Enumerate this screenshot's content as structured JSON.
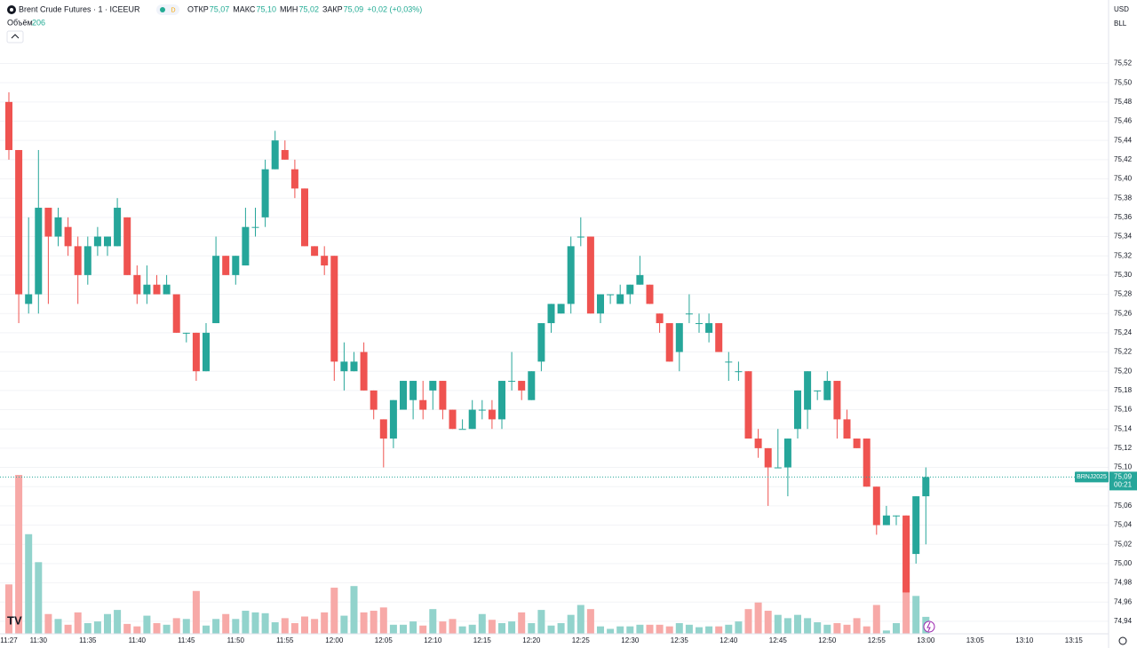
{
  "header": {
    "title": "Brent Crude Futures · 1 · ICEEUR",
    "badge": "D",
    "stats": [
      {
        "name": "ОТКР",
        "value": "75,07"
      },
      {
        "name": "МАКС",
        "value": "75,10"
      },
      {
        "name": "МИН",
        "value": "75,02"
      },
      {
        "name": "ЗАКР",
        "value": "75,09"
      }
    ],
    "change": "+0,02 (+0,03%)",
    "volume_name": "Объём",
    "volume_value": "206",
    "currency": "USD",
    "unit": "BLL"
  },
  "chart_data": {
    "type": "candlestick",
    "categories": [
      "11:27",
      null,
      null,
      "11:30",
      null,
      null,
      null,
      null,
      "11:35",
      null,
      null,
      null,
      null,
      "11:40",
      null,
      null,
      null,
      null,
      "11:45",
      null,
      null,
      null,
      null,
      "11:50",
      null,
      null,
      null,
      null,
      "11:55",
      null,
      null,
      null,
      null,
      "12:00",
      null,
      null,
      null,
      null,
      "12:05",
      null,
      null,
      null,
      null,
      "12:10",
      null,
      null,
      null,
      null,
      "12:15",
      null,
      null,
      null,
      null,
      "12:20",
      null,
      null,
      null,
      null,
      "12:25",
      null,
      null,
      null,
      null,
      "12:30",
      null,
      null,
      null,
      null,
      "12:35",
      null,
      null,
      null,
      null,
      "12:40",
      null,
      null,
      null,
      null,
      "12:45",
      null,
      null,
      null,
      null,
      "12:50",
      null,
      null,
      null,
      null,
      "12:55",
      null,
      null,
      null,
      null,
      "13:00",
      null,
      null,
      null,
      null,
      "13:05",
      null,
      null,
      null,
      null,
      "13:10",
      null,
      null,
      null,
      null,
      "13:15"
    ],
    "open": [
      75.48,
      75.43,
      75.27,
      75.28,
      75.37,
      75.34,
      75.35,
      75.33,
      75.3,
      75.33,
      75.33,
      75.33,
      75.36,
      75.3,
      75.28,
      75.29,
      75.28,
      75.28,
      75.24,
      75.24,
      75.2,
      75.25,
      75.32,
      75.3,
      75.31,
      75.35,
      75.36,
      75.41,
      75.43,
      75.41,
      75.39,
      75.33,
      75.32,
      75.32,
      75.2,
      75.2,
      75.22,
      75.18,
      75.15,
      75.13,
      75.16,
      75.17,
      75.17,
      75.18,
      75.19,
      75.16,
      75.14,
      75.14,
      75.16,
      75.16,
      75.15,
      75.19,
      75.19,
      75.17,
      75.21,
      75.25,
      75.26,
      75.27,
      75.34,
      75.34,
      75.26,
      75.28,
      75.27,
      75.28,
      75.29,
      75.29,
      75.26,
      75.25,
      75.22,
      75.26,
      75.25,
      75.24,
      75.25,
      75.21,
      75.2,
      75.2,
      75.13,
      75.12,
      75.1,
      75.1,
      75.14,
      75.16,
      75.18,
      75.17,
      75.19,
      75.15,
      75.13,
      75.13,
      75.08,
      75.04,
      75.05,
      75.05,
      75.01,
      75.07,
      null,
      null,
      null,
      null,
      null,
      null,
      null,
      null,
      null,
      null,
      null,
      null,
      null,
      null,
      null
    ],
    "high": [
      75.49,
      75.43,
      75.36,
      75.43,
      75.37,
      75.37,
      75.36,
      75.34,
      75.34,
      75.35,
      75.34,
      75.38,
      75.36,
      75.31,
      75.31,
      75.3,
      75.3,
      75.28,
      75.24,
      75.24,
      75.25,
      75.34,
      75.32,
      75.32,
      75.37,
      75.37,
      75.42,
      75.45,
      75.44,
      75.42,
      75.39,
      75.33,
      75.33,
      75.32,
      75.23,
      75.22,
      75.23,
      75.18,
      75.15,
      75.17,
      75.19,
      75.19,
      75.19,
      75.19,
      75.19,
      75.16,
      75.15,
      75.17,
      75.17,
      75.17,
      75.19,
      75.22,
      75.19,
      75.2,
      75.25,
      75.27,
      75.27,
      75.34,
      75.36,
      75.34,
      75.28,
      75.28,
      75.29,
      75.29,
      75.32,
      75.29,
      75.26,
      75.25,
      75.25,
      75.28,
      75.26,
      75.26,
      75.25,
      75.22,
      75.21,
      75.2,
      75.14,
      75.12,
      75.14,
      75.13,
      75.18,
      75.2,
      75.18,
      75.2,
      75.19,
      75.16,
      75.13,
      75.13,
      75.08,
      75.06,
      75.05,
      75.05,
      75.07,
      75.1,
      null,
      null,
      null,
      null,
      null,
      null,
      null,
      null,
      null,
      null,
      null,
      null,
      null,
      null,
      null
    ],
    "low": [
      75.42,
      75.25,
      75.26,
      75.26,
      75.27,
      75.33,
      75.32,
      75.27,
      75.29,
      75.32,
      75.32,
      75.33,
      75.3,
      75.27,
      75.27,
      75.28,
      75.28,
      75.24,
      75.23,
      75.19,
      75.2,
      75.25,
      75.3,
      75.29,
      75.31,
      75.34,
      75.35,
      75.41,
      75.42,
      75.38,
      75.33,
      75.32,
      75.3,
      75.19,
      75.18,
      75.2,
      75.18,
      75.15,
      75.1,
      75.12,
      75.16,
      75.15,
      75.15,
      75.16,
      75.15,
      75.14,
      75.14,
      75.14,
      75.15,
      75.14,
      75.14,
      75.18,
      75.17,
      75.17,
      75.2,
      75.24,
      75.26,
      75.26,
      75.33,
      75.26,
      75.25,
      75.27,
      75.27,
      75.27,
      75.29,
      75.27,
      75.24,
      75.21,
      75.2,
      75.25,
      75.24,
      75.23,
      75.22,
      75.19,
      75.19,
      75.13,
      75.11,
      75.06,
      75.1,
      75.07,
      75.13,
      75.14,
      75.17,
      75.17,
      75.13,
      75.13,
      75.12,
      75.08,
      75.03,
      75.04,
      75.04,
      74.97,
      75.0,
      75.02,
      null,
      null,
      null,
      null,
      null,
      null,
      null,
      null,
      null,
      null,
      null,
      null,
      null,
      null,
      null
    ],
    "close": [
      75.43,
      75.28,
      75.28,
      75.37,
      75.34,
      75.36,
      75.33,
      75.3,
      75.33,
      75.34,
      75.34,
      75.37,
      75.3,
      75.28,
      75.29,
      75.28,
      75.29,
      75.24,
      75.24,
      75.2,
      75.24,
      75.32,
      75.3,
      75.32,
      75.35,
      75.35,
      75.41,
      75.44,
      75.42,
      75.39,
      75.33,
      75.32,
      75.31,
      75.21,
      75.21,
      75.21,
      75.18,
      75.16,
      75.13,
      75.17,
      75.19,
      75.19,
      75.16,
      75.19,
      75.16,
      75.14,
      75.14,
      75.16,
      75.16,
      75.15,
      75.19,
      75.19,
      75.18,
      75.2,
      75.25,
      75.27,
      75.27,
      75.33,
      75.34,
      75.26,
      75.28,
      75.28,
      75.28,
      75.29,
      75.3,
      75.27,
      75.25,
      75.21,
      75.25,
      75.26,
      75.25,
      75.25,
      75.22,
      75.21,
      75.2,
      75.13,
      75.12,
      75.1,
      75.1,
      75.13,
      75.18,
      75.2,
      75.18,
      75.19,
      75.15,
      75.13,
      75.12,
      75.08,
      75.04,
      75.05,
      75.05,
      74.97,
      75.07,
      75.09,
      null,
      null,
      null,
      null,
      null,
      null,
      null,
      null,
      null,
      null,
      null,
      null,
      null,
      null,
      null
    ],
    "volume": [
      600,
      1930,
      1210,
      870,
      240,
      180,
      110,
      260,
      130,
      150,
      240,
      290,
      120,
      90,
      220,
      130,
      110,
      190,
      180,
      520,
      100,
      180,
      240,
      180,
      280,
      260,
      250,
      140,
      190,
      130,
      210,
      180,
      260,
      560,
      220,
      580,
      260,
      280,
      320,
      110,
      110,
      150,
      100,
      300,
      150,
      180,
      90,
      110,
      240,
      170,
      130,
      150,
      260,
      130,
      290,
      100,
      130,
      230,
      350,
      300,
      90,
      60,
      90,
      90,
      110,
      110,
      110,
      90,
      130,
      110,
      80,
      90,
      90,
      110,
      150,
      300,
      380,
      280,
      230,
      190,
      230,
      190,
      140,
      110,
      130,
      110,
      190,
      90,
      350,
      40,
      130,
      1340,
      460,
      206,
      null,
      null,
      null,
      null,
      null,
      null,
      null,
      null,
      null,
      null,
      null,
      null,
      null,
      null,
      null
    ],
    "ylim": [
      74.927,
      75.586
    ],
    "yticks": [
      {
        "value": 75.52,
        "label": "75,52"
      },
      {
        "value": 75.5,
        "label": "75,50"
      },
      {
        "value": 75.48,
        "label": "75,48"
      },
      {
        "value": 75.46,
        "label": "75,46"
      },
      {
        "value": 75.44,
        "label": "75,44"
      },
      {
        "value": 75.42,
        "label": "75,42"
      },
      {
        "value": 75.4,
        "label": "75,40"
      },
      {
        "value": 75.38,
        "label": "75,38"
      },
      {
        "value": 75.36,
        "label": "75,36"
      },
      {
        "value": 75.34,
        "label": "75,34"
      },
      {
        "value": 75.32,
        "label": "75,32"
      },
      {
        "value": 75.3,
        "label": "75,30"
      },
      {
        "value": 75.28,
        "label": "75,28"
      },
      {
        "value": 75.26,
        "label": "75,26"
      },
      {
        "value": 75.24,
        "label": "75,24"
      },
      {
        "value": 75.22,
        "label": "75,22"
      },
      {
        "value": 75.2,
        "label": "75,20"
      },
      {
        "value": 75.18,
        "label": "75,18"
      },
      {
        "value": 75.16,
        "label": "75,16"
      },
      {
        "value": 75.14,
        "label": "75,14"
      },
      {
        "value": 75.12,
        "label": "75,12"
      },
      {
        "value": 75.1,
        "label": "75,10"
      },
      {
        "value": 75.08,
        "label": "75,08"
      },
      {
        "value": 75.06,
        "label": "75,06"
      },
      {
        "value": 75.04,
        "label": "75,04"
      },
      {
        "value": 75.02,
        "label": "75,02"
      },
      {
        "value": 75.0,
        "label": "75,00"
      },
      {
        "value": 74.98,
        "label": "74,98"
      },
      {
        "value": 74.96,
        "label": "74,96"
      },
      {
        "value": 74.94,
        "label": "74,94"
      }
    ],
    "grid": true,
    "up_color": "#26a69a",
    "down_color": "#ef5350",
    "up_volume_color": "#92d3cc",
    "down_volume_color": "#f7a9a7",
    "last_price": {
      "value": 75.09,
      "label": "75,09"
    },
    "symbol": "BRNJ2025",
    "countdown": "00:21"
  }
}
